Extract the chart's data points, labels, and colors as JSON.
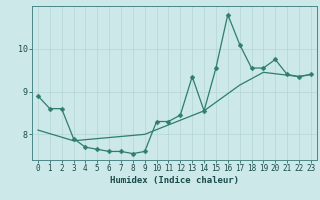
{
  "title": "",
  "xlabel": "Humidex (Indice chaleur)",
  "bg_color": "#cce8e8",
  "line_color": "#2e7d6e",
  "xlim": [
    -0.5,
    23.5
  ],
  "ylim": [
    7.4,
    11.0
  ],
  "xticks": [
    0,
    1,
    2,
    3,
    4,
    5,
    6,
    7,
    8,
    9,
    10,
    11,
    12,
    13,
    14,
    15,
    16,
    17,
    18,
    19,
    20,
    21,
    22,
    23
  ],
  "yticks": [
    8,
    9,
    10
  ],
  "curve1_x": [
    0,
    1,
    2,
    3,
    4,
    5,
    6,
    7,
    8,
    9,
    10,
    11,
    12,
    13,
    14,
    15,
    16,
    17,
    18,
    19,
    20,
    21,
    22,
    23
  ],
  "curve1_y": [
    8.9,
    8.6,
    8.6,
    7.9,
    7.7,
    7.65,
    7.6,
    7.6,
    7.55,
    7.6,
    8.3,
    8.3,
    8.45,
    9.35,
    8.55,
    9.55,
    10.8,
    10.1,
    9.55,
    9.55,
    9.75,
    9.4,
    9.35,
    9.4
  ],
  "curve2_x": [
    0,
    3,
    9,
    14,
    17,
    19,
    22,
    23
  ],
  "curve2_y": [
    8.1,
    7.85,
    8.0,
    8.55,
    9.15,
    9.45,
    9.35,
    9.4
  ],
  "grid_color": "#b8d8d8",
  "marker_size": 2.5,
  "linewidth": 0.9,
  "tick_fontsize": 5.5,
  "xlabel_fontsize": 6.5
}
